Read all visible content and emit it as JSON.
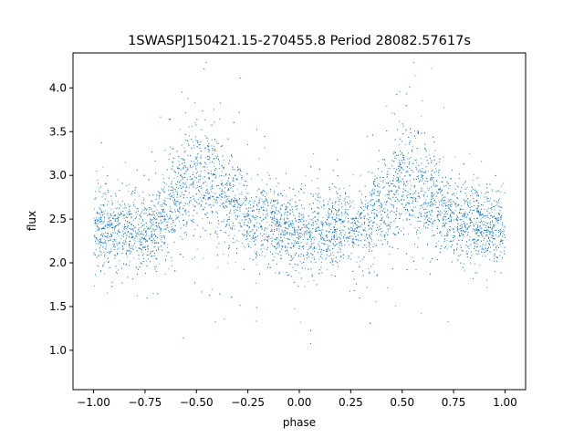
{
  "chart_data": {
    "type": "scatter",
    "title": "1SWASPJ150421.15-270455.8 Period 28082.57617s",
    "xlabel": "phase",
    "ylabel": "flux",
    "xlim": [
      -1.1,
      1.1
    ],
    "ylim": [
      0.55,
      4.4
    ],
    "x_ticks": [
      -1.0,
      -0.75,
      -0.5,
      -0.25,
      0.0,
      0.25,
      0.5,
      0.75,
      1.0
    ],
    "x_tick_labels": [
      "−1.00",
      "−0.75",
      "−0.50",
      "−0.25",
      "0.00",
      "0.25",
      "0.50",
      "0.75",
      "1.00"
    ],
    "y_ticks": [
      1.0,
      1.5,
      2.0,
      2.5,
      3.0,
      3.5,
      4.0
    ],
    "y_tick_labels": [
      "1.0",
      "1.5",
      "2.0",
      "2.5",
      "3.0",
      "3.5",
      "4.0"
    ],
    "grid": false,
    "series": [
      {
        "color": "#1f77b4",
        "x": [
          -1.0,
          -0.95,
          -0.9,
          -0.85,
          -0.8,
          -0.75,
          -0.7,
          -0.65,
          -0.6,
          -0.55,
          -0.5,
          -0.45,
          -0.4,
          -0.35,
          -0.3,
          -0.25,
          -0.2,
          -0.15,
          -0.1,
          -0.05,
          0.0,
          0.05,
          0.1,
          0.15,
          0.2,
          0.25,
          0.3,
          0.35,
          0.4,
          0.45,
          0.5,
          0.55,
          0.6,
          0.65,
          0.7,
          0.75,
          0.8,
          0.85,
          0.9,
          0.95,
          1.0
        ],
        "y": [
          2.38,
          2.38,
          2.4,
          2.4,
          2.35,
          2.35,
          2.42,
          2.55,
          2.72,
          2.88,
          2.95,
          2.95,
          2.85,
          2.72,
          2.62,
          2.52,
          2.46,
          2.42,
          2.4,
          2.38,
          2.35,
          2.32,
          2.35,
          2.38,
          2.4,
          2.38,
          2.4,
          2.48,
          2.65,
          2.85,
          2.95,
          2.92,
          2.82,
          2.72,
          2.62,
          2.55,
          2.5,
          2.45,
          2.42,
          2.4,
          2.38
        ],
        "scatter_sd": [
          0.22,
          0.22,
          0.22,
          0.22,
          0.23,
          0.24,
          0.25,
          0.28,
          0.3,
          0.32,
          0.33,
          0.33,
          0.32,
          0.28,
          0.26,
          0.24,
          0.22,
          0.22,
          0.22,
          0.22,
          0.22,
          0.22,
          0.22,
          0.22,
          0.22,
          0.22,
          0.23,
          0.25,
          0.28,
          0.31,
          0.33,
          0.33,
          0.31,
          0.28,
          0.26,
          0.24,
          0.23,
          0.22,
          0.22,
          0.22,
          0.22
        ]
      }
    ]
  }
}
